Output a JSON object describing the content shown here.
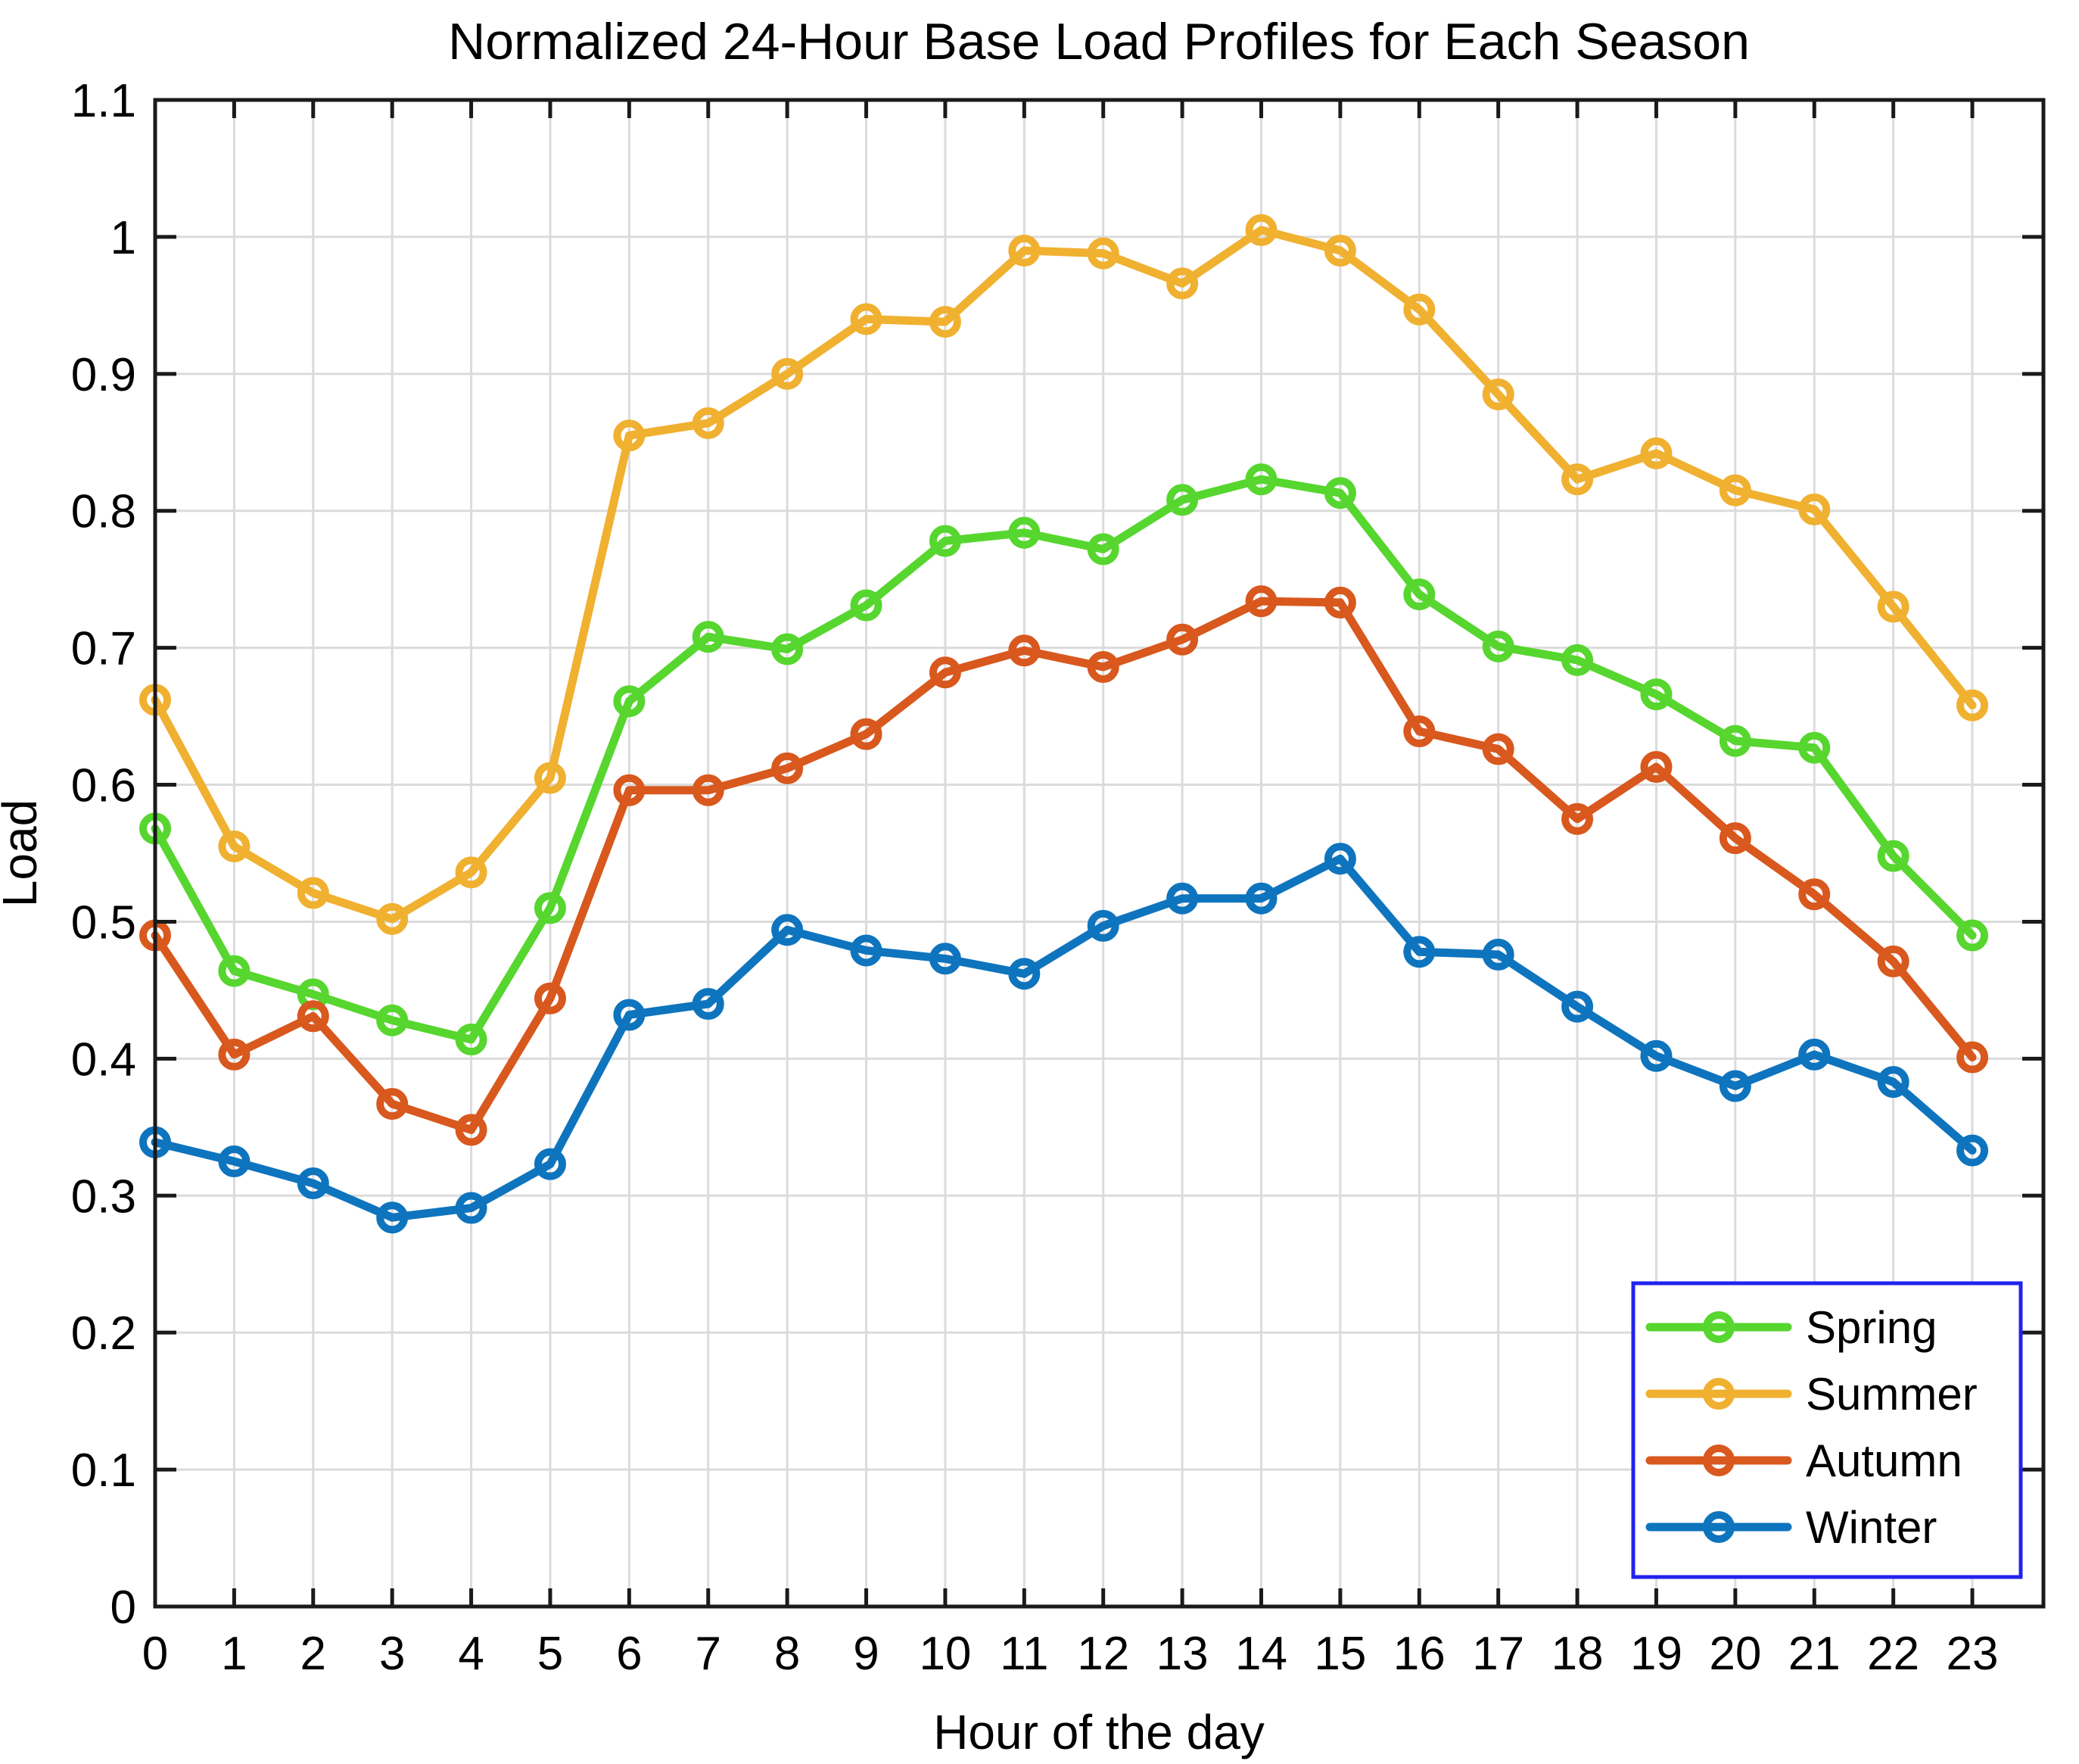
{
  "chart_data": {
    "type": "line",
    "title": "Normalized 24-Hour Base Load Profiles for Each Season",
    "xlabel": "Hour of the day",
    "ylabel": "Load",
    "x": [
      0,
      1,
      2,
      3,
      4,
      5,
      6,
      7,
      8,
      9,
      10,
      11,
      12,
      13,
      14,
      15,
      16,
      17,
      18,
      19,
      20,
      21,
      22,
      23
    ],
    "xlim": [
      0,
      23.9
    ],
    "ylim": [
      0,
      1.1
    ],
    "x_ticks": [
      0,
      1,
      2,
      3,
      4,
      5,
      6,
      7,
      8,
      9,
      10,
      11,
      12,
      13,
      14,
      15,
      16,
      17,
      18,
      19,
      20,
      21,
      22,
      23
    ],
    "x_tick_labels": [
      "0",
      "1",
      "2",
      "3",
      "4",
      "5",
      "6",
      "7",
      "8",
      "9",
      "10",
      "11",
      "12",
      "13",
      "14",
      "15",
      "16",
      "17",
      "18",
      "19",
      "20",
      "21",
      "22",
      "23"
    ],
    "y_ticks": [
      0,
      0.1,
      0.2,
      0.3,
      0.4,
      0.5,
      0.6,
      0.7,
      0.8,
      0.9,
      1.0,
      1.1
    ],
    "y_tick_labels": [
      "0",
      "0.1",
      "0.2",
      "0.3",
      "0.4",
      "0.5",
      "0.6",
      "0.7",
      "0.8",
      "0.9",
      "1",
      "1.1"
    ],
    "grid": true,
    "grid_color": "#dbdbdb",
    "axis_color": "#1a1a1a",
    "marker": "o",
    "legend_position": "lower right",
    "legend_border_color": "#2222ee",
    "series": [
      {
        "name": "Spring",
        "color": "#56d62e",
        "values": [
          0.568,
          0.464,
          0.447,
          0.428,
          0.414,
          0.51,
          0.661,
          0.708,
          0.699,
          0.731,
          0.778,
          0.784,
          0.772,
          0.808,
          0.823,
          0.813,
          0.739,
          0.701,
          0.691,
          0.666,
          0.632,
          0.627,
          0.548,
          0.49
        ]
      },
      {
        "name": "Summer",
        "color": "#f0b030",
        "values": [
          0.662,
          0.555,
          0.521,
          0.502,
          0.536,
          0.605,
          0.855,
          0.864,
          0.9,
          0.94,
          0.938,
          0.99,
          0.988,
          0.966,
          1.005,
          0.99,
          0.947,
          0.885,
          0.823,
          0.842,
          0.815,
          0.801,
          0.73,
          0.658
        ]
      },
      {
        "name": "Autumn",
        "color": "#d8581e",
        "values": [
          0.49,
          0.403,
          0.431,
          0.367,
          0.348,
          0.444,
          0.596,
          0.596,
          0.612,
          0.637,
          0.682,
          0.698,
          0.686,
          0.706,
          0.734,
          0.733,
          0.639,
          0.626,
          0.575,
          0.613,
          0.561,
          0.52,
          0.471,
          0.401
        ]
      },
      {
        "name": "Winter",
        "color": "#0e74be",
        "values": [
          0.339,
          0.325,
          0.309,
          0.284,
          0.291,
          0.323,
          0.432,
          0.44,
          0.494,
          0.479,
          0.473,
          0.462,
          0.497,
          0.517,
          0.517,
          0.546,
          0.478,
          0.476,
          0.438,
          0.402,
          0.38,
          0.403,
          0.383,
          0.333
        ]
      }
    ]
  }
}
